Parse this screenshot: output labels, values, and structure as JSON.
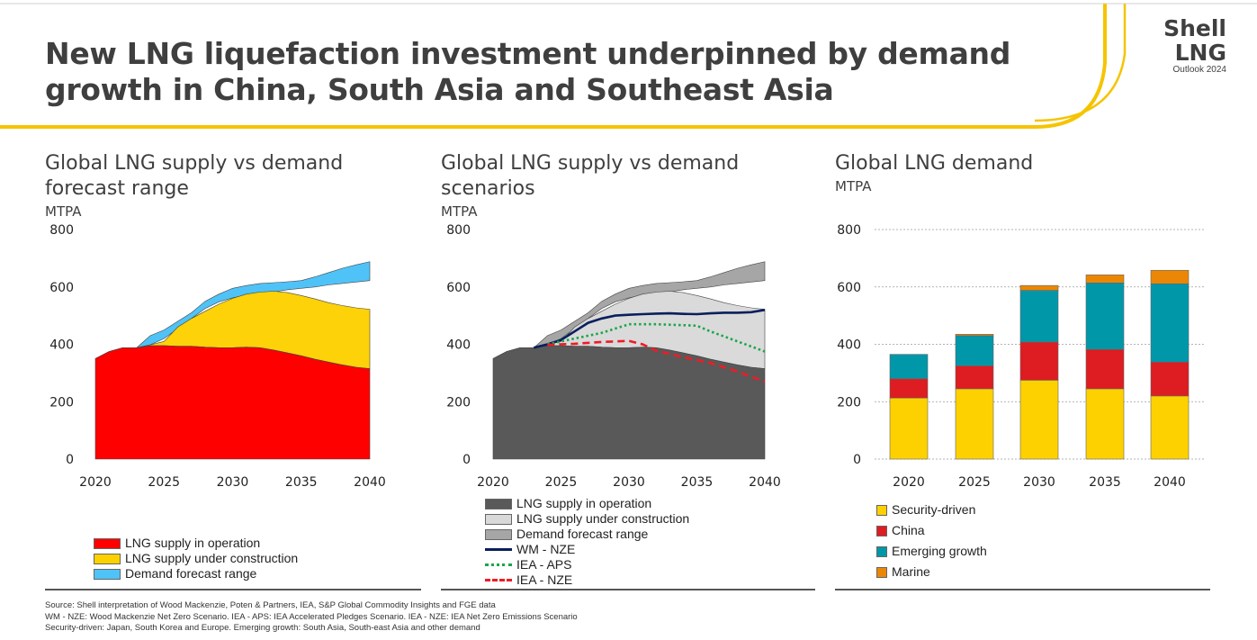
{
  "header": {
    "title": "New LNG liquefaction investment underpinned by demand growth in China, South Asia and Southeast Asia",
    "brand_line1": "Shell",
    "brand_line2": "LNG",
    "brand_line3": "Outlook 2024",
    "accent_color": "#f5c400"
  },
  "panels": [
    {
      "title": "Global LNG supply vs demand forecast range",
      "unit": "MTPA"
    },
    {
      "title": "Global LNG supply vs demand scenarios",
      "unit": "MTPA"
    },
    {
      "title": "Global LNG demand",
      "unit": "MTPA"
    }
  ],
  "legends": {
    "left": [
      {
        "label": "LNG supply in operation",
        "color": "#ff0000"
      },
      {
        "label": "LNG supply under construction",
        "color": "#fdd100"
      },
      {
        "label": "Demand forecast range",
        "color": "#4fc3f7"
      }
    ],
    "middle": [
      {
        "label": "LNG supply in operation",
        "color": "#595959",
        "kind": "box"
      },
      {
        "label": "LNG supply under construction",
        "color": "#d9d9d9",
        "kind": "box"
      },
      {
        "label": "Demand forecast range",
        "color": "#a6a6a6",
        "kind": "box"
      },
      {
        "label": "WM - NZE",
        "color": "#0a1f5c",
        "kind": "solid"
      },
      {
        "label": "IEA - APS",
        "color": "#1aa64a",
        "kind": "dotted"
      },
      {
        "label": "IEA - NZE",
        "color": "#ee1c25",
        "kind": "dashed"
      }
    ],
    "right": [
      {
        "label": "Security-driven",
        "color": "#fdd100"
      },
      {
        "label": "China",
        "color": "#dd1d21"
      },
      {
        "label": "Emerging growth",
        "color": "#0097a9"
      },
      {
        "label": "Marine",
        "color": "#eb8705"
      }
    ]
  },
  "sources": [
    "Source: Shell interpretation of Wood Mackenzie, Poten & Partners, IEA, S&P Global Commodity Insights and FGE data",
    "WM - NZE: Wood Mackenzie Net Zero Scenario. IEA - APS: IEA Accelerated Pledges Scenario. IEA - NZE: IEA Net Zero Emissions Scenario",
    "Security-driven: Japan, South Korea and Europe. Emerging growth: South Asia, South-east Asia and other demand"
  ],
  "chart_data": [
    {
      "type": "area",
      "title": "Global LNG supply vs demand forecast range",
      "ylabel": "MTPA",
      "ylim": [
        0,
        800
      ],
      "yticks": [
        "0",
        "200",
        "400",
        "600",
        "800"
      ],
      "xticks": [
        "2020",
        "2025",
        "2030",
        "2035",
        "2040"
      ],
      "xlim": [
        2020,
        2040
      ],
      "x": [
        2020,
        2021,
        2022,
        2023,
        2024,
        2025,
        2026,
        2027,
        2028,
        2029,
        2030,
        2031,
        2032,
        2033,
        2034,
        2035,
        2036,
        2037,
        2038,
        2039,
        2040
      ],
      "series": [
        {
          "name": "LNG supply in operation",
          "color": "#ff0000",
          "values": [
            350,
            375,
            388,
            388,
            395,
            395,
            393,
            393,
            390,
            388,
            388,
            390,
            388,
            380,
            370,
            360,
            348,
            338,
            328,
            320,
            315
          ]
        },
        {
          "name": "LNG supply under construction",
          "color": "#fdd100",
          "values": [
            350,
            375,
            388,
            388,
            398,
            410,
            460,
            490,
            515,
            540,
            560,
            575,
            582,
            585,
            580,
            570,
            558,
            545,
            535,
            527,
            522
          ]
        },
        {
          "name": "Demand forecast range (low)",
          "color": "#4fc3f7",
          "values": [
            350,
            375,
            388,
            388,
            398,
            420,
            455,
            490,
            525,
            548,
            562,
            572,
            578,
            583,
            590,
            595,
            600,
            607,
            612,
            617,
            622
          ]
        },
        {
          "name": "Demand forecast range (high)",
          "color": "#4fc3f7",
          "values": [
            350,
            375,
            388,
            388,
            430,
            450,
            480,
            510,
            550,
            575,
            595,
            605,
            612,
            615,
            618,
            622,
            635,
            650,
            665,
            677,
            688
          ]
        }
      ]
    },
    {
      "type": "area",
      "title": "Global LNG supply vs demand scenarios",
      "ylabel": "MTPA",
      "ylim": [
        0,
        800
      ],
      "yticks": [
        "0",
        "200",
        "400",
        "600",
        "800"
      ],
      "xticks": [
        "2020",
        "2025",
        "2030",
        "2035",
        "2040"
      ],
      "xlim": [
        2020,
        2040
      ],
      "x": [
        2020,
        2021,
        2022,
        2023,
        2024,
        2025,
        2026,
        2027,
        2028,
        2029,
        2030,
        2031,
        2032,
        2033,
        2034,
        2035,
        2036,
        2037,
        2038,
        2039,
        2040
      ],
      "series": [
        {
          "name": "LNG supply in operation",
          "color": "#595959",
          "values": [
            350,
            375,
            388,
            388,
            395,
            395,
            393,
            393,
            390,
            388,
            388,
            390,
            388,
            380,
            370,
            360,
            348,
            338,
            328,
            320,
            315
          ]
        },
        {
          "name": "LNG supply under construction",
          "color": "#d9d9d9",
          "values": [
            350,
            375,
            388,
            388,
            398,
            410,
            460,
            490,
            515,
            540,
            560,
            575,
            582,
            585,
            580,
            570,
            558,
            545,
            535,
            527,
            522
          ]
        },
        {
          "name": "Demand forecast range (low)",
          "color": "#a6a6a6",
          "values": [
            350,
            375,
            388,
            388,
            398,
            420,
            455,
            490,
            525,
            548,
            562,
            572,
            578,
            583,
            590,
            595,
            600,
            607,
            612,
            617,
            622
          ]
        },
        {
          "name": "Demand forecast range (high)",
          "color": "#a6a6a6",
          "values": [
            350,
            375,
            388,
            388,
            430,
            450,
            480,
            510,
            550,
            575,
            595,
            605,
            612,
            615,
            618,
            622,
            635,
            650,
            665,
            677,
            688
          ]
        }
      ],
      "lines": [
        {
          "name": "WM - NZE",
          "color": "#0a1f5c",
          "style": "solid",
          "x": [
            2023,
            2024,
            2025,
            2026,
            2027,
            2028,
            2029,
            2030,
            2031,
            2032,
            2033,
            2034,
            2035,
            2036,
            2037,
            2038,
            2039,
            2040
          ],
          "values": [
            388,
            400,
            415,
            445,
            475,
            490,
            500,
            503,
            505,
            507,
            508,
            506,
            505,
            508,
            510,
            510,
            512,
            520
          ]
        },
        {
          "name": "IEA - APS",
          "color": "#1aa64a",
          "style": "dotted",
          "x": [
            2024,
            2026,
            2028,
            2030,
            2032,
            2035,
            2036,
            2038,
            2040
          ],
          "values": [
            400,
            420,
            440,
            470,
            470,
            465,
            445,
            410,
            375
          ]
        },
        {
          "name": "IEA - NZE",
          "color": "#ee1c25",
          "style": "dashed",
          "x": [
            2024,
            2026,
            2028,
            2030,
            2031,
            2032,
            2034,
            2036,
            2038,
            2040
          ],
          "values": [
            398,
            402,
            408,
            412,
            400,
            378,
            355,
            335,
            305,
            270
          ]
        }
      ]
    },
    {
      "type": "bar",
      "stacked": true,
      "title": "Global LNG demand",
      "ylabel": "MTPA",
      "ylim": [
        0,
        800
      ],
      "yticks": [
        "0",
        "200",
        "400",
        "600",
        "800"
      ],
      "categories": [
        "2020",
        "2025",
        "2030",
        "2035",
        "2040"
      ],
      "series": [
        {
          "name": "Security-driven",
          "color": "#fdd100",
          "values": [
            213,
            245,
            275,
            245,
            220
          ]
        },
        {
          "name": "China",
          "color": "#dd1d21",
          "values": [
            67,
            80,
            133,
            137,
            118
          ]
        },
        {
          "name": "Emerging growth",
          "color": "#0097a9",
          "values": [
            85,
            105,
            180,
            232,
            273
          ]
        },
        {
          "name": "Marine",
          "color": "#eb8705",
          "values": [
            0,
            5,
            17,
            28,
            47
          ]
        }
      ]
    }
  ]
}
